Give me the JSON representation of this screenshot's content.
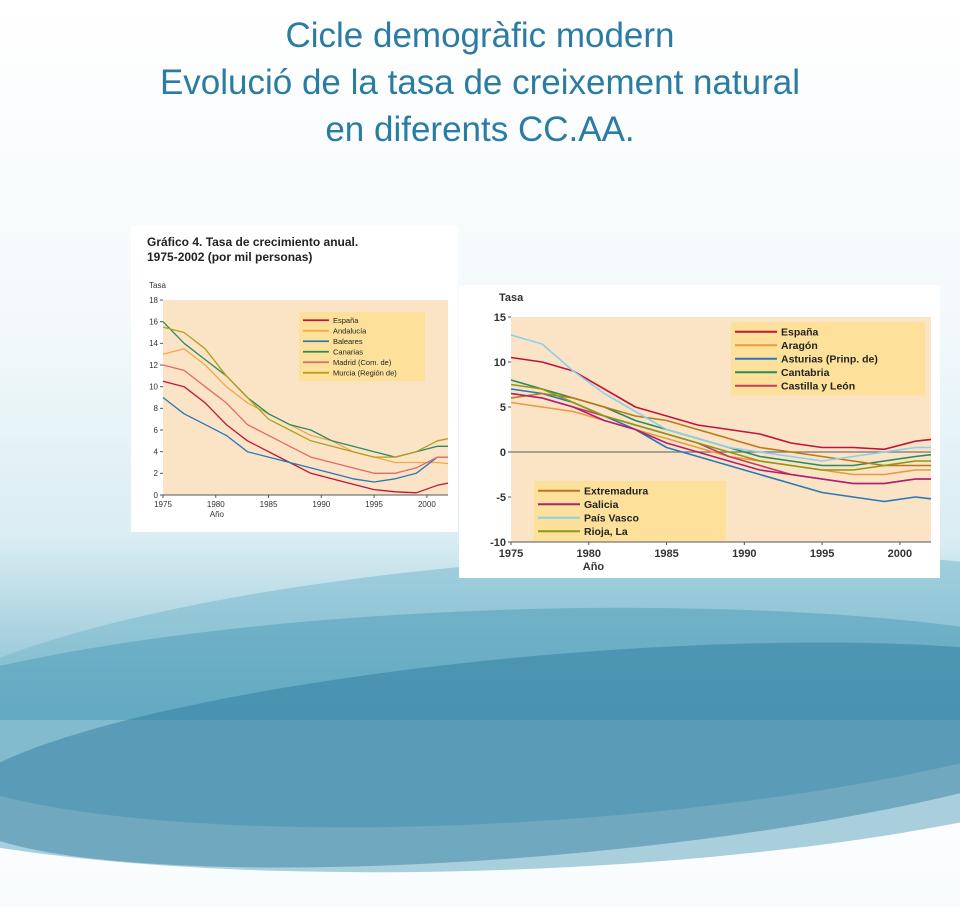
{
  "slide": {
    "title_lines": [
      "Cicle demogràfic modern",
      "Evolució de la tasa de creixement natural",
      "en diferents CC.AA."
    ]
  },
  "colors": {
    "title": "#2a7ca3",
    "plot_bg": "#fbe3c6",
    "legend_bg": "#fde19a"
  },
  "chart_data": [
    {
      "type": "line",
      "title": "Gráfico 4. Tasa de crecimiento anual. 1975-2002 (por mil personas)",
      "title_lines": [
        "Gráfico 4. Tasa de crecimiento anual.",
        "1975-2002 (por mil personas)"
      ],
      "ylabel": "Tasa",
      "xlabel": "Año",
      "xlim": [
        1975,
        2002
      ],
      "ylim": [
        0,
        18
      ],
      "xticks": [
        1975,
        1980,
        1985,
        1990,
        1995,
        2000
      ],
      "yticks": [
        0,
        2,
        4,
        6,
        8,
        10,
        12,
        14,
        16,
        18
      ],
      "x": [
        1975,
        1977,
        1979,
        1981,
        1983,
        1985,
        1987,
        1989,
        1991,
        1993,
        1995,
        1997,
        1999,
        2001,
        2002
      ],
      "series": [
        {
          "name": "España",
          "color": "#c0143c",
          "values": [
            10.5,
            10.0,
            8.5,
            6.5,
            5.0,
            4.0,
            3.0,
            2.0,
            1.5,
            1.0,
            0.5,
            0.3,
            0.2,
            0.9,
            1.1
          ]
        },
        {
          "name": "Andalucía",
          "color": "#f0a848",
          "values": [
            13.0,
            13.5,
            12.0,
            10.0,
            8.5,
            7.5,
            6.5,
            5.5,
            5.0,
            4.0,
            3.5,
            3.0,
            3.0,
            3.0,
            2.9
          ]
        },
        {
          "name": "Baleares",
          "color": "#2a78b8",
          "values": [
            9.0,
            7.5,
            6.5,
            5.5,
            4.0,
            3.5,
            3.0,
            2.5,
            2.0,
            1.5,
            1.2,
            1.5,
            2.0,
            3.5,
            3.5
          ]
        },
        {
          "name": "Canarias",
          "color": "#2c8a5e",
          "values": [
            16.0,
            14.0,
            12.5,
            11.0,
            9.0,
            7.5,
            6.5,
            6.0,
            5.0,
            4.5,
            4.0,
            3.5,
            4.0,
            4.5,
            4.5
          ]
        },
        {
          "name": "Madrid (Com. de)",
          "color": "#e06a6a",
          "values": [
            12.0,
            11.5,
            10.0,
            8.5,
            6.5,
            5.5,
            4.5,
            3.5,
            3.0,
            2.5,
            2.0,
            2.0,
            2.5,
            3.5,
            3.5
          ]
        },
        {
          "name": "Murcia (Región de)",
          "color": "#b0a020",
          "values": [
            15.5,
            15.0,
            13.5,
            11.0,
            9.0,
            7.0,
            6.0,
            5.0,
            4.5,
            4.0,
            3.5,
            3.5,
            4.0,
            5.0,
            5.2
          ]
        }
      ]
    },
    {
      "type": "line",
      "ylabel": "Tasa",
      "xlabel": "Año",
      "xlim": [
        1975,
        2002
      ],
      "ylim": [
        -10,
        15
      ],
      "xticks": [
        1975,
        1980,
        1985,
        1990,
        1995,
        2000
      ],
      "yticks": [
        -10,
        -5,
        0,
        5,
        10,
        15
      ],
      "x": [
        1975,
        1977,
        1979,
        1981,
        1983,
        1985,
        1987,
        1989,
        1991,
        1993,
        1995,
        1997,
        1999,
        2001,
        2002
      ],
      "series": [
        {
          "name": "España",
          "color": "#c0143c",
          "values": [
            10.5,
            10.0,
            9.0,
            7.0,
            5.0,
            4.0,
            3.0,
            2.5,
            2.0,
            1.0,
            0.5,
            0.5,
            0.3,
            1.2,
            1.4
          ]
        },
        {
          "name": "Aragón",
          "color": "#e89a40",
          "values": [
            5.5,
            5.0,
            4.5,
            3.5,
            2.5,
            1.5,
            0.5,
            -0.5,
            -1.0,
            -1.5,
            -2.0,
            -2.5,
            -2.5,
            -2.0,
            -2.0
          ]
        },
        {
          "name": "Asturias (Prinp. de)",
          "color": "#2a78b8",
          "values": [
            7.0,
            6.5,
            5.5,
            4.0,
            2.5,
            0.5,
            -0.5,
            -1.5,
            -2.5,
            -3.5,
            -4.5,
            -5.0,
            -5.5,
            -5.0,
            -5.2
          ]
        },
        {
          "name": "Cantabria",
          "color": "#2c8a5e",
          "values": [
            8.0,
            7.0,
            6.0,
            5.0,
            3.5,
            2.5,
            1.5,
            0.5,
            -0.5,
            -1.0,
            -1.5,
            -1.5,
            -1.0,
            -0.5,
            -0.3
          ]
        },
        {
          "name": "Castilla y León",
          "color": "#c23c6a",
          "values": [
            6.5,
            6.0,
            5.0,
            4.0,
            3.0,
            2.0,
            1.0,
            -0.5,
            -1.5,
            -2.5,
            -3.0,
            -3.5,
            -3.5,
            -3.0,
            -3.0
          ]
        },
        {
          "name": "Extremadura",
          "color": "#b9781a",
          "values": [
            6.0,
            6.5,
            6.0,
            5.0,
            4.0,
            3.5,
            2.5,
            1.5,
            0.5,
            0.0,
            -0.5,
            -1.0,
            -1.5,
            -1.5,
            -1.5
          ]
        },
        {
          "name": "Galicia",
          "color": "#b02070",
          "values": [
            6.5,
            6.0,
            5.0,
            3.5,
            2.5,
            1.0,
            0.0,
            -1.0,
            -2.0,
            -2.5,
            -3.0,
            -3.5,
            -3.5,
            -3.0,
            -3.0
          ]
        },
        {
          "name": "País Vasco",
          "color": "#8ad0ea",
          "values": [
            13.0,
            12.0,
            9.0,
            6.5,
            4.5,
            2.5,
            1.5,
            0.5,
            0.0,
            -0.5,
            -1.0,
            -0.5,
            0.0,
            0.5,
            0.5
          ]
        },
        {
          "name": "Rioja, La",
          "color": "#8a9a18",
          "values": [
            7.5,
            7.0,
            5.5,
            4.0,
            3.0,
            2.0,
            1.0,
            0.0,
            -1.0,
            -1.5,
            -2.0,
            -2.0,
            -1.5,
            -1.0,
            -1.0
          ]
        }
      ],
      "legend_groups": [
        [
          0,
          1,
          2,
          3,
          4
        ],
        [
          5,
          6,
          7,
          8
        ]
      ]
    }
  ]
}
